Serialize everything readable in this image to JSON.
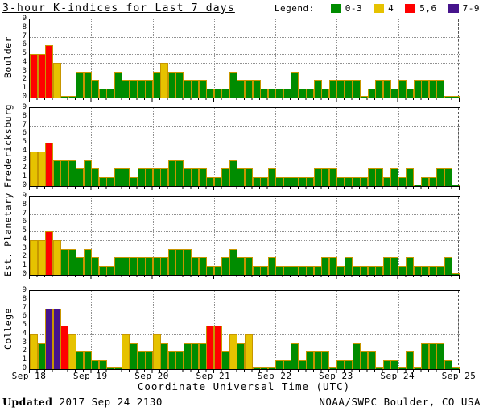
{
  "header": {
    "title": "3-hour K-indices for Last 7 days"
  },
  "legend": {
    "label": "Legend:",
    "items": [
      {
        "label": "0-3",
        "color": "#008C00"
      },
      {
        "label": "4",
        "color": "#E6C200"
      },
      {
        "label": "5,6",
        "color": "#FF0000"
      },
      {
        "label": "7-9",
        "color": "#46148C"
      }
    ]
  },
  "chart_data": {
    "type": "bar",
    "title": "3-hour K-indices for Last 7 days",
    "xlabel": "Coordinate Universal Time (UTC)",
    "x_tick_labels": [
      "Sep 18",
      "Sep 19",
      "Sep 20",
      "Sep 21",
      "Sep 22",
      "Sep 23",
      "Sep 24",
      "Sep 25"
    ],
    "days": 7,
    "bars_per_day": 8,
    "ylim": [
      0,
      9
    ],
    "y_ticks": [
      0,
      1,
      2,
      3,
      4,
      5,
      6,
      7,
      8,
      9
    ],
    "gridlines_y": [
      4,
      5,
      7
    ],
    "grid": "dotted",
    "legend_position": "top-right",
    "bar_outline_color": "#c79600",
    "color_scale": [
      {
        "range": "0-3",
        "color": "#008C00"
      },
      {
        "range": "4",
        "color": "#E6C200"
      },
      {
        "range": "5,6",
        "color": "#FF0000"
      },
      {
        "range": "7-9",
        "color": "#46148C"
      }
    ],
    "panels": [
      {
        "label": "Boulder",
        "values": [
          5,
          5,
          6,
          4,
          0,
          0,
          3,
          3,
          2,
          1,
          1,
          3,
          2,
          2,
          2,
          2,
          3,
          4,
          3,
          3,
          2,
          2,
          2,
          1,
          1,
          1,
          3,
          2,
          2,
          2,
          1,
          1,
          1,
          1,
          3,
          1,
          1,
          2,
          1,
          2,
          2,
          2,
          2,
          0,
          1,
          2,
          2,
          1,
          2,
          1,
          2,
          2,
          2,
          2,
          0,
          0
        ]
      },
      {
        "label": "Fredericksburg",
        "values": [
          4,
          4,
          5,
          3,
          3,
          3,
          2,
          3,
          2,
          1,
          1,
          2,
          2,
          1,
          2,
          2,
          2,
          2,
          3,
          3,
          2,
          2,
          2,
          1,
          1,
          2,
          3,
          2,
          2,
          1,
          1,
          2,
          1,
          1,
          1,
          1,
          1,
          2,
          2,
          2,
          1,
          1,
          1,
          1,
          2,
          2,
          1,
          2,
          1,
          2,
          0,
          1,
          1,
          2,
          2,
          0
        ]
      },
      {
        "label": "Est. Planetary",
        "values": [
          4,
          4,
          5,
          4,
          3,
          3,
          2,
          3,
          2,
          1,
          1,
          2,
          2,
          2,
          2,
          2,
          2,
          2,
          3,
          3,
          3,
          2,
          2,
          1,
          1,
          2,
          3,
          2,
          2,
          1,
          1,
          2,
          1,
          1,
          1,
          1,
          1,
          1,
          2,
          2,
          1,
          2,
          1,
          1,
          1,
          1,
          2,
          2,
          1,
          2,
          1,
          1,
          1,
          1,
          2,
          0
        ]
      },
      {
        "label": "College",
        "values": [
          4,
          3,
          7,
          7,
          5,
          4,
          2,
          2,
          1,
          1,
          0,
          0,
          4,
          3,
          2,
          2,
          4,
          3,
          2,
          2,
          3,
          3,
          3,
          5,
          5,
          2,
          4,
          3,
          4,
          0,
          0,
          0,
          1,
          1,
          3,
          1,
          2,
          2,
          2,
          0,
          1,
          1,
          3,
          2,
          2,
          0,
          1,
          1,
          0,
          2,
          0,
          3,
          3,
          3,
          1,
          0
        ]
      }
    ]
  },
  "footer": {
    "updated_label": "Updated",
    "updated_value": "2017 Sep 24 2130",
    "source": "NOAA/SWPC Boulder, CO USA"
  }
}
